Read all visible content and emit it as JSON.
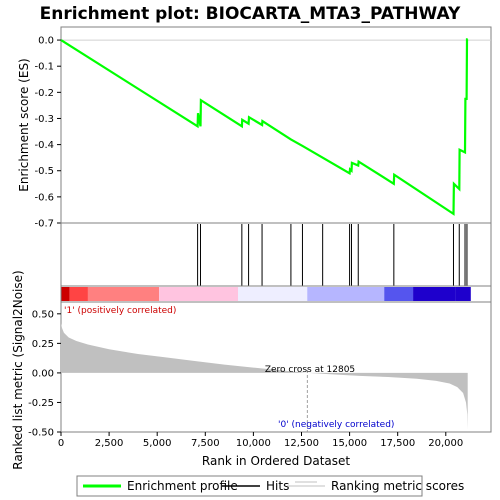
{
  "chart_data": [
    {
      "type": "line",
      "title": "Enrichment plot: BIOCARTA_MTA3_PATHWAY",
      "ylabel": "Enrichment score (ES)",
      "ylim": [
        -0.7,
        0.05
      ],
      "y_ticks": [
        "0.0",
        "-0.1",
        "-0.2",
        "-0.3",
        "-0.4",
        "-0.5",
        "-0.6",
        "-0.7"
      ],
      "grid": false,
      "series": [
        {
          "name": "Enrichment profile",
          "color": "#00ff00",
          "points": [
            [
              0,
              0.0
            ],
            [
              7100,
              -0.33
            ],
            [
              7120,
              -0.28
            ],
            [
              7250,
              -0.33
            ],
            [
              7270,
              -0.23
            ],
            [
              9400,
              -0.33
            ],
            [
              9420,
              -0.305
            ],
            [
              9750,
              -0.32
            ],
            [
              9770,
              -0.295
            ],
            [
              10450,
              -0.325
            ],
            [
              10470,
              -0.31
            ],
            [
              11950,
              -0.38
            ],
            [
              12550,
              -0.405
            ],
            [
              13600,
              -0.45
            ],
            [
              15000,
              -0.51
            ],
            [
              15020,
              -0.495
            ],
            [
              15100,
              -0.5
            ],
            [
              15120,
              -0.47
            ],
            [
              15450,
              -0.48
            ],
            [
              15470,
              -0.465
            ],
            [
              17300,
              -0.55
            ],
            [
              17320,
              -0.515
            ],
            [
              20400,
              -0.665
            ],
            [
              20420,
              -0.55
            ],
            [
              20700,
              -0.57
            ],
            [
              20720,
              -0.42
            ],
            [
              21000,
              -0.43
            ],
            [
              21020,
              -0.225
            ],
            [
              21080,
              -0.225
            ],
            [
              21100,
              0.003
            ],
            [
              21140,
              0.003
            ]
          ]
        }
      ]
    },
    {
      "type": "scatter",
      "series": [
        {
          "name": "Hits",
          "color": "#000000",
          "x": [
            7100,
            7250,
            9400,
            9750,
            10450,
            11950,
            12550,
            13600,
            15000,
            15100,
            15450,
            17300,
            20400,
            20700,
            21000,
            21100
          ]
        }
      ]
    },
    {
      "type": "heatmap",
      "colorbar_stops": [
        "#cc0000",
        "#ff4444",
        "#ff8080",
        "#ffc4e0",
        "#eeeeff",
        "#b6b6ff",
        "#5555ee",
        "#1e00cc"
      ],
      "colorbar_breaks": [
        0,
        450,
        1400,
        5100,
        9200,
        12800,
        16800,
        18300,
        20500,
        21300
      ]
    },
    {
      "type": "area",
      "name": "Ranking metric scores",
      "color": "#c0c0c0",
      "xlabel": "Rank in Ordered Dataset",
      "ylabel": "Ranked list metric (Signal2Noise)",
      "xlim": [
        0,
        22350
      ],
      "ylim": [
        -0.5,
        0.6
      ],
      "x_ticks": [
        "0",
        "2,500",
        "5,000",
        "7,500",
        "10,000",
        "12,500",
        "15,000",
        "17,500",
        "20,000"
      ],
      "x_tick_values": [
        0,
        2500,
        5000,
        7500,
        10000,
        12500,
        15000,
        17500,
        20000
      ],
      "y_ticks": [
        "0.50",
        "0.25",
        "0.00",
        "-0.25",
        "-0.50"
      ],
      "y_tick_values": [
        0.5,
        0.25,
        0.0,
        -0.25,
        -0.5
      ],
      "points": [
        [
          0,
          0.42
        ],
        [
          50,
          0.38
        ],
        [
          150,
          0.34
        ],
        [
          400,
          0.3
        ],
        [
          800,
          0.27
        ],
        [
          1400,
          0.24
        ],
        [
          2500,
          0.2
        ],
        [
          4000,
          0.16
        ],
        [
          5500,
          0.13
        ],
        [
          7000,
          0.1
        ],
        [
          8500,
          0.07
        ],
        [
          10000,
          0.045
        ],
        [
          11500,
          0.02
        ],
        [
          12805,
          0.0
        ],
        [
          14000,
          -0.012
        ],
        [
          15500,
          -0.025
        ],
        [
          17000,
          -0.035
        ],
        [
          18500,
          -0.05
        ],
        [
          19500,
          -0.068
        ],
        [
          20200,
          -0.09
        ],
        [
          20600,
          -0.12
        ],
        [
          20900,
          -0.17
        ],
        [
          21050,
          -0.25
        ],
        [
          21120,
          -0.35
        ],
        [
          21140,
          -0.48
        ]
      ],
      "zero_cross_rank": 12805,
      "annotations": {
        "zero_cross": "Zero cross at 12805",
        "pos": "'1' (positively correlated)",
        "neg": "'0' (negatively correlated)"
      }
    }
  ],
  "legend": [
    {
      "label": "Enrichment profile",
      "color": "#00ff00",
      "style": "thick"
    },
    {
      "label": "Hits",
      "color": "#000000",
      "style": "thin"
    },
    {
      "label": "Ranking metric scores",
      "color": "#c0c0c0",
      "style": "thin"
    }
  ],
  "colors": {
    "pos_text": "#cc0000",
    "neg_text": "#0000cc"
  }
}
